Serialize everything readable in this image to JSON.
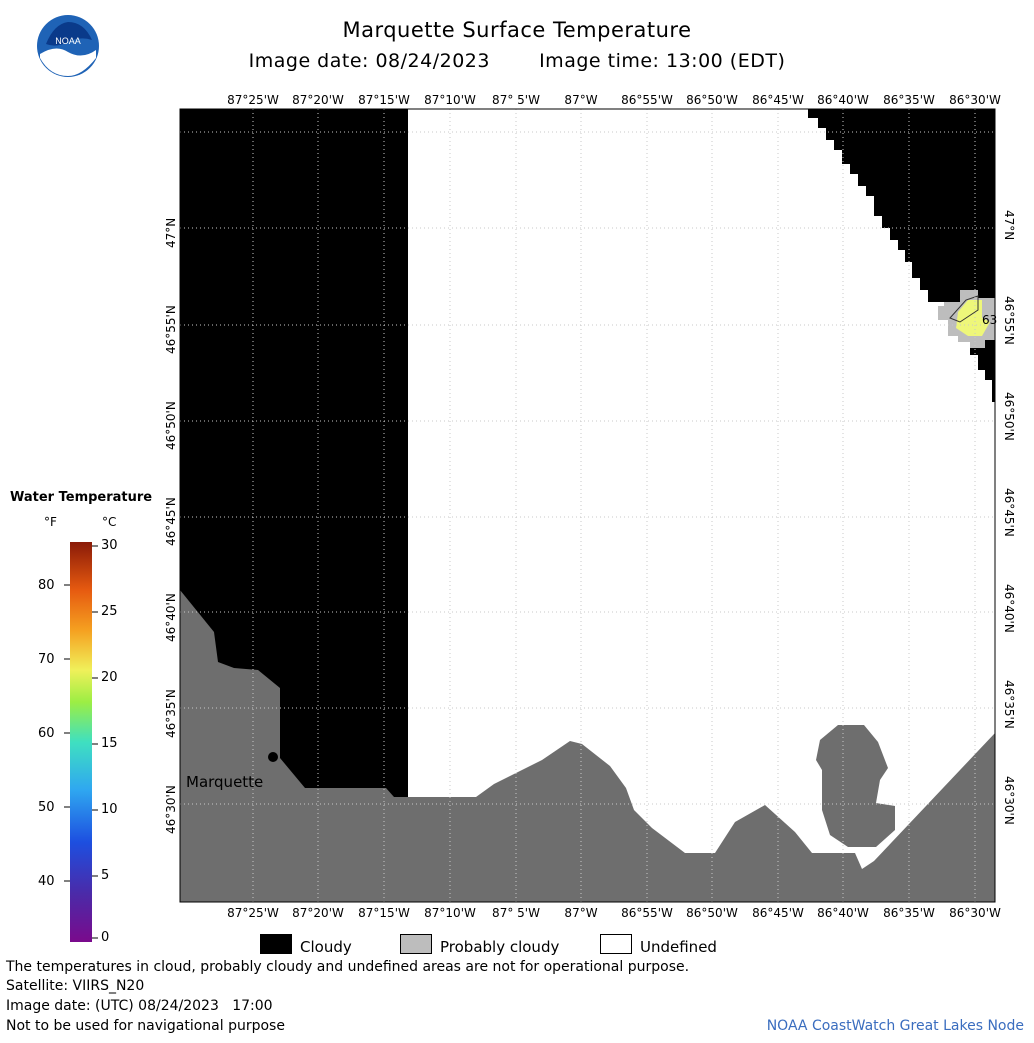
{
  "header": {
    "title": "Marquette Surface Temperature",
    "image_date_label": "Image date: 08/24/2023",
    "image_time_label": "Image time: 13:00 (EDT)",
    "logo_text": "NOAA"
  },
  "map": {
    "lon_ticks": [
      "87°25'W",
      "87°20'W",
      "87°15'W",
      "87°10'W",
      "87° 5'W",
      "87°W",
      "86°55'W",
      "86°50'W",
      "86°45'W",
      "86°40'W",
      "86°35'W",
      "86°30'W"
    ],
    "lon_ticks_top_last": "86°30'W",
    "lat_ticks": [
      "47°N",
      "46°55'N",
      "46°50'N",
      "46°45'N",
      "46°40'N",
      "46°35'N",
      "46°30'N"
    ],
    "place_label": "Marquette",
    "temp_label": "63",
    "colors": {
      "cloud": "#000000",
      "land": "#6e6e6e",
      "probably_cloudy": "#bdbdbd",
      "water_warm": "#eef77a",
      "undefined": "#ffffff"
    }
  },
  "colorbar": {
    "title": "Water Temperature",
    "unit_f": "°F",
    "unit_c": "°C",
    "f_labels": [
      "80",
      "70",
      "60",
      "50",
      "40"
    ],
    "c_labels": [
      "30",
      "25",
      "20",
      "15",
      "10",
      "5",
      "0"
    ]
  },
  "legend": {
    "cloudy": "Cloudy",
    "probably_cloudy": "Probably cloudy",
    "undefined": "Undefined"
  },
  "footer": {
    "disclaimer": "The temperatures in cloud, probably cloudy and undefined areas are not for operational purpose.",
    "satellite": "Satellite: VIIRS_N20",
    "utc_date": "Image date: (UTC) 08/24/2023   17:00",
    "nav_warning": "Not to be used for navigational purpose",
    "credit": "NOAA CoastWatch Great Lakes Node"
  }
}
